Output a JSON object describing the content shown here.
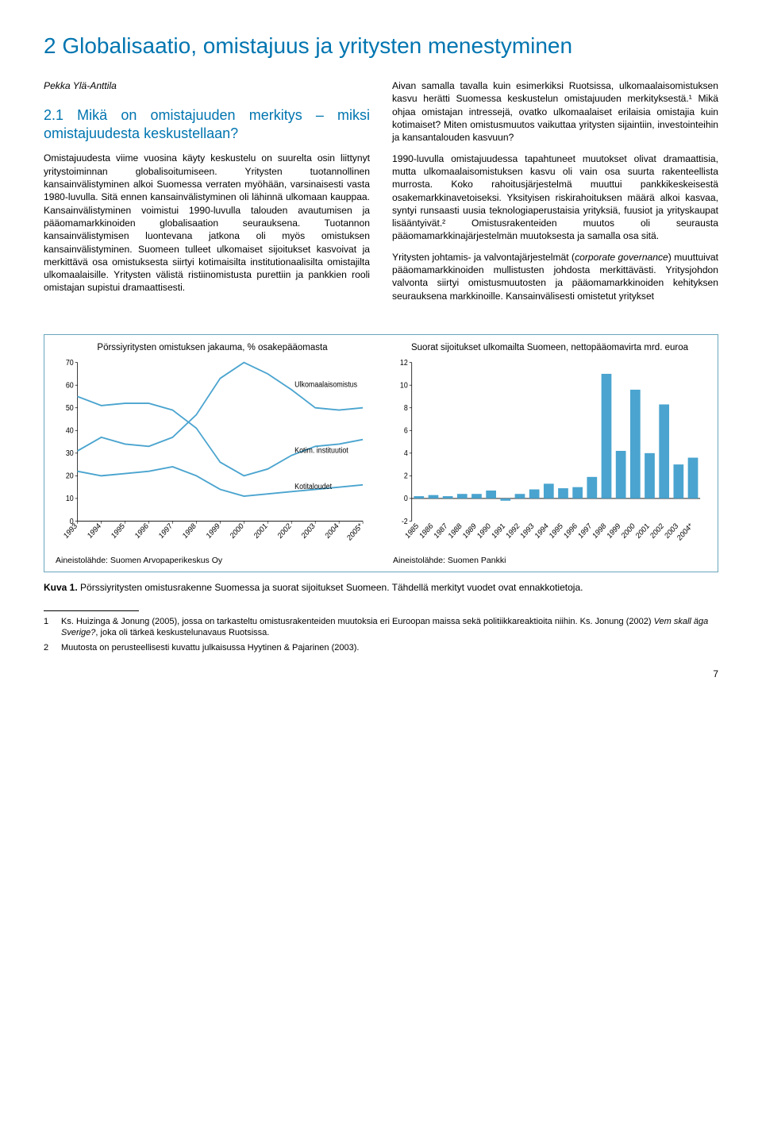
{
  "section_title": "2 Globalisaatio, omistajuus ja yritysten menestyminen",
  "author": "Pekka Ylä-Anttila",
  "subhead": "2.1 Mikä on omistajuuden merkitys – miksi omistajuudesta keskustellaan?",
  "col_left": {
    "p1": "Omistajuudesta viime vuosina käyty keskustelu on suurelta osin liittynyt yritystoiminnan globalisoitumiseen. Yritysten tuotannollinen kansainvälistyminen alkoi Suomessa verraten myöhään, varsinaisesti vasta 1980-luvulla. Sitä ennen kansainvälistyminen oli lähinnä ulkomaan kauppaa. Kansainvälistyminen voimistui 1990-luvulla talouden avautumisen ja pääomamarkkinoiden globalisaation seurauksena. Tuotannon kansainvälistymisen luontevana jatkona oli myös omistuksen kansainvälistyminen. Suomeen tulleet ulkomaiset sijoitukset kasvoivat ja merkittävä osa omistuksesta siirtyi kotimaisilta institutionaalisilta omistajilta ulkomaalaisille. Yritysten välistä ristiinomistusta purettiin ja pankkien rooli omistajan supistui dramaattisesti."
  },
  "col_right": {
    "p1": "Aivan samalla tavalla kuin esimerkiksi Ruotsissa, ulkomaalaisomistuksen kasvu herätti Suomessa keskustelun omistajuuden merkityksestä.¹ Mikä ohjaa omistajan intressejä, ovatko ulkomaalaiset erilaisia omistajia kuin kotimaiset? Miten omistusmuutos vaikuttaa yritysten sijaintiin, investointeihin ja kansantalouden kasvuun?",
    "p2": "1990-luvulla omistajuudessa tapahtuneet muutokset olivat dramaattisia, mutta ulkomaalaisomistuksen kasvu oli vain osa suurta rakenteellista murrosta. Koko rahoitusjärjestelmä muuttui pankkikeskeisestä osakemarkkinavetoiseksi. Yksityisen riskirahoituksen määrä alkoi kasvaa, syntyi runsaasti uusia teknologiaperustaisia yrityksiä, fuusiot ja yrityskaupat lisääntyivät.² Omistusrakenteiden muutos oli seurausta pääomamarkkinajärjestelmän muutoksesta ja samalla osa sitä.",
    "p3_a": "Yritysten johtamis- ja valvontajärjestelmät (",
    "p3_i": "corporate governance",
    "p3_b": ") muuttuivat pääomamarkkinoiden mullistusten johdosta merkittävästi. Yritysjohdon valvonta siirtyi omistusmuutosten ja pääomamarkkinoiden kehityksen seurauksena markkinoille. Kansainvälisesti omistetut yritykset"
  },
  "chart1": {
    "title": "Pörssiyritysten omistuksen jakauma, % osakepääomasta",
    "source": "Aineistolähde: Suomen Arvopaperikeskus Oy",
    "y_max": 70,
    "y_ticks": [
      0,
      10,
      20,
      30,
      40,
      50,
      60,
      70
    ],
    "x_labels": [
      "1993",
      "1994",
      "1995",
      "1996",
      "1997",
      "1998",
      "1999",
      "2000",
      "2001",
      "2002",
      "2003",
      "2004",
      "2005*"
    ],
    "series": [
      {
        "name": "Ulkomaalaisomistus",
        "color": "#4aa4cf",
        "values": [
          31,
          37,
          34,
          33,
          37,
          47,
          63,
          70,
          65,
          58,
          50,
          49,
          50
        ],
        "label": "Ulkomaalaisomistus",
        "label_at": 9
      },
      {
        "name": "Kotim. instituutiot",
        "color": "#4aa4cf",
        "values": [
          55,
          51,
          52,
          52,
          49,
          41,
          26,
          20,
          23,
          29,
          33,
          34,
          36
        ],
        "label": "Kotim. instituutiot",
        "label_at": 9
      },
      {
        "name": "Kotitaloudet",
        "color": "#4aa4cf",
        "values": [
          22,
          20,
          21,
          22,
          24,
          20,
          14,
          11,
          12,
          13,
          14,
          15,
          16
        ],
        "label": "Kotitaloudet",
        "label_at": 9
      }
    ]
  },
  "chart2": {
    "title": "Suorat sijoitukset ulkomailta Suomeen, nettopääomavirta mrd. euroa",
    "source": "Aineistolähde: Suomen Pankki",
    "y_min": -2,
    "y_max": 12,
    "y_ticks": [
      -2,
      0,
      2,
      4,
      6,
      8,
      10,
      12
    ],
    "x_labels": [
      "1985",
      "1986",
      "1987",
      "1988",
      "1989",
      "1990",
      "1991",
      "1992",
      "1993",
      "1994",
      "1995",
      "1996",
      "1997",
      "1998",
      "1999",
      "2000",
      "2001",
      "2002",
      "2003",
      "2004*"
    ],
    "bars": [
      0.2,
      0.3,
      0.2,
      0.4,
      0.4,
      0.7,
      -0.2,
      0.4,
      0.8,
      1.3,
      0.9,
      1.0,
      1.9,
      11.0,
      4.2,
      9.6,
      4.0,
      8.3,
      3.0,
      3.6
    ],
    "bar_color": "#4aa4cf",
    "zero_line_color": "#000000"
  },
  "figure_caption_bold": "Kuva 1.",
  "figure_caption_main": " Pörssiyritysten omistusrakenne Suomessa ja suorat sijoitukset Suomeen.",
  "figure_caption_tail": " Tähdellä merkityt vuodet ovat ennakkotietoja.",
  "footnotes": {
    "f1_num": "1",
    "f1_a": "Ks. Huizinga & Jonung (2005), jossa on tarkasteltu omistusrakenteiden muutoksia eri Euroopan maissa sekä politiikkareaktioita niihin. Ks. Jonung (2002) ",
    "f1_i": "Vem skall äga Sverige?",
    "f1_b": ", joka oli tärkeä keskustelunavaus Ruotsissa.",
    "f2_num": "2",
    "f2": "Muutosta on perusteellisesti kuvattu julkaisussa Hyytinen & Pajarinen (2003)."
  },
  "page_number": "7"
}
